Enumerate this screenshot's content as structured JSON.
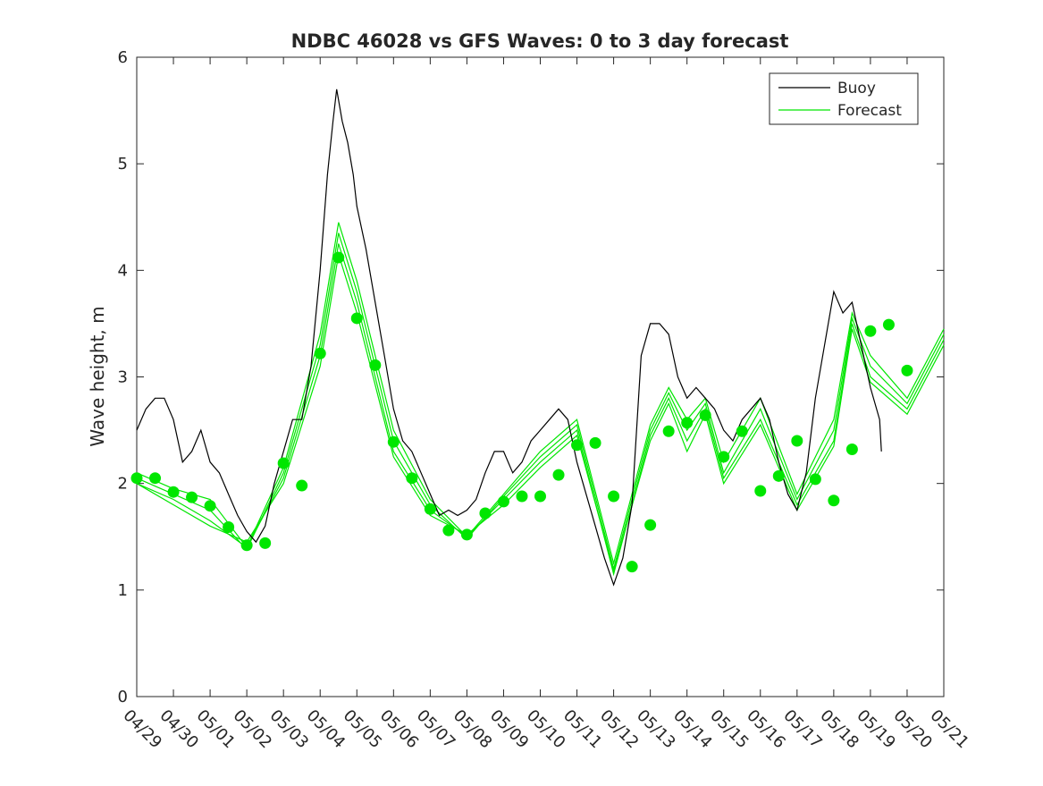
{
  "chart_data": {
    "type": "line",
    "title": "NDBC 46028 vs GFS Waves: 0 to 3 day forecast",
    "xlabel": "",
    "ylabel": "Wave height, m",
    "x_unit": "days since 04/29",
    "xlim": [
      0,
      22
    ],
    "ylim": [
      0,
      6
    ],
    "x_tick_values": [
      0,
      1,
      2,
      3,
      4,
      5,
      6,
      7,
      8,
      9,
      10,
      11,
      12,
      13,
      14,
      15,
      16,
      17,
      18,
      19,
      20,
      21,
      22
    ],
    "x_tick_labels": [
      "04/29",
      "04/30",
      "05/01",
      "05/02",
      "05/03",
      "05/04",
      "05/05",
      "05/06",
      "05/07",
      "05/08",
      "05/09",
      "05/10",
      "05/11",
      "05/12",
      "05/13",
      "05/14",
      "05/15",
      "05/16",
      "05/17",
      "05/18",
      "05/19",
      "05/20",
      "05/21"
    ],
    "y_tick_values": [
      0,
      1,
      2,
      3,
      4,
      5,
      6
    ],
    "y_tick_labels": [
      "0",
      "1",
      "2",
      "3",
      "4",
      "5",
      "6"
    ],
    "grid": false,
    "legend": {
      "position": "top-right",
      "entries": [
        {
          "label": "Buoy",
          "color": "#000000"
        },
        {
          "label": "Forecast",
          "color": "#00e600"
        }
      ]
    },
    "series": [
      {
        "name": "Buoy",
        "color": "#000000",
        "points": [
          [
            0.0,
            2.5
          ],
          [
            0.25,
            2.7
          ],
          [
            0.5,
            2.8
          ],
          [
            0.75,
            2.8
          ],
          [
            1.0,
            2.6
          ],
          [
            1.25,
            2.2
          ],
          [
            1.5,
            2.3
          ],
          [
            1.75,
            2.5
          ],
          [
            2.0,
            2.2
          ],
          [
            2.25,
            2.1
          ],
          [
            2.5,
            1.9
          ],
          [
            2.75,
            1.7
          ],
          [
            3.0,
            1.55
          ],
          [
            3.25,
            1.45
          ],
          [
            3.5,
            1.6
          ],
          [
            3.75,
            2.0
          ],
          [
            4.0,
            2.3
          ],
          [
            4.25,
            2.6
          ],
          [
            4.5,
            2.6
          ],
          [
            4.75,
            3.1
          ],
          [
            5.0,
            4.0
          ],
          [
            5.2,
            4.9
          ],
          [
            5.35,
            5.4
          ],
          [
            5.45,
            5.7
          ],
          [
            5.6,
            5.4
          ],
          [
            5.75,
            5.2
          ],
          [
            5.9,
            4.9
          ],
          [
            6.0,
            4.6
          ],
          [
            6.25,
            4.2
          ],
          [
            6.5,
            3.7
          ],
          [
            6.75,
            3.2
          ],
          [
            7.0,
            2.7
          ],
          [
            7.25,
            2.4
          ],
          [
            7.5,
            2.3
          ],
          [
            7.75,
            2.1
          ],
          [
            8.0,
            1.9
          ],
          [
            8.25,
            1.7
          ],
          [
            8.5,
            1.75
          ],
          [
            8.75,
            1.7
          ],
          [
            9.0,
            1.75
          ],
          [
            9.25,
            1.85
          ],
          [
            9.5,
            2.1
          ],
          [
            9.75,
            2.3
          ],
          [
            10.0,
            2.3
          ],
          [
            10.25,
            2.1
          ],
          [
            10.5,
            2.2
          ],
          [
            10.75,
            2.4
          ],
          [
            11.0,
            2.5
          ],
          [
            11.25,
            2.6
          ],
          [
            11.5,
            2.7
          ],
          [
            11.75,
            2.6
          ],
          [
            12.0,
            2.2
          ],
          [
            12.25,
            1.9
          ],
          [
            12.5,
            1.6
          ],
          [
            12.75,
            1.3
          ],
          [
            13.0,
            1.05
          ],
          [
            13.25,
            1.3
          ],
          [
            13.5,
            1.8
          ],
          [
            13.75,
            3.2
          ],
          [
            14.0,
            3.5
          ],
          [
            14.25,
            3.5
          ],
          [
            14.5,
            3.4
          ],
          [
            14.75,
            3.0
          ],
          [
            15.0,
            2.8
          ],
          [
            15.25,
            2.9
          ],
          [
            15.5,
            2.8
          ],
          [
            15.75,
            2.7
          ],
          [
            16.0,
            2.5
          ],
          [
            16.25,
            2.4
          ],
          [
            16.5,
            2.6
          ],
          [
            16.75,
            2.7
          ],
          [
            17.0,
            2.8
          ],
          [
            17.25,
            2.6
          ],
          [
            17.5,
            2.2
          ],
          [
            17.75,
            1.9
          ],
          [
            18.0,
            1.75
          ],
          [
            18.25,
            2.1
          ],
          [
            18.5,
            2.8
          ],
          [
            18.75,
            3.3
          ],
          [
            19.0,
            3.8
          ],
          [
            19.25,
            3.6
          ],
          [
            19.5,
            3.7
          ],
          [
            19.75,
            3.3
          ],
          [
            20.0,
            2.9
          ],
          [
            20.25,
            2.6
          ],
          [
            20.3,
            2.3
          ]
        ]
      },
      {
        "name": "Forecast",
        "color": "#00e600",
        "points": [
          [
            0.0,
            2.05
          ],
          [
            0.5,
            2.05
          ],
          [
            1.0,
            1.92
          ],
          [
            1.5,
            1.87
          ],
          [
            2.0,
            1.79
          ],
          [
            2.5,
            1.59
          ],
          [
            3.0,
            1.42
          ],
          [
            3.5,
            1.44
          ],
          [
            4.0,
            2.19
          ],
          [
            4.5,
            1.98
          ],
          [
            5.0,
            3.22
          ],
          [
            5.5,
            4.12
          ],
          [
            6.0,
            3.55
          ],
          [
            6.5,
            3.11
          ],
          [
            7.0,
            2.39
          ],
          [
            7.5,
            2.05
          ],
          [
            8.0,
            1.76
          ],
          [
            8.5,
            1.56
          ],
          [
            9.0,
            1.52
          ],
          [
            9.5,
            1.72
          ],
          [
            10.0,
            1.83
          ],
          [
            10.5,
            1.88
          ],
          [
            11.0,
            1.88
          ],
          [
            11.5,
            2.08
          ],
          [
            12.0,
            2.36
          ],
          [
            12.5,
            2.38
          ],
          [
            13.0,
            1.88
          ],
          [
            13.5,
            1.22
          ],
          [
            14.0,
            1.61
          ],
          [
            14.5,
            2.49
          ],
          [
            15.0,
            2.57
          ],
          [
            15.5,
            2.64
          ],
          [
            16.0,
            2.25
          ],
          [
            16.5,
            2.49
          ],
          [
            17.0,
            1.93
          ],
          [
            17.5,
            2.07
          ],
          [
            18.0,
            2.4
          ],
          [
            18.5,
            2.04
          ],
          [
            19.0,
            1.84
          ],
          [
            19.5,
            2.32
          ],
          [
            20.0,
            3.43
          ],
          [
            20.5,
            3.49
          ],
          [
            21.0,
            3.06
          ]
        ]
      }
    ],
    "forecast_runs": [
      {
        "name": "Forecast run 1",
        "points": [
          [
            0,
            2.1
          ],
          [
            1,
            1.95
          ],
          [
            2,
            1.85
          ],
          [
            3,
            1.4
          ],
          [
            4,
            2.15
          ],
          [
            5,
            3.4
          ],
          [
            5.5,
            4.45
          ],
          [
            6,
            3.9
          ],
          [
            7,
            2.5
          ],
          [
            8,
            1.85
          ],
          [
            9,
            1.5
          ],
          [
            10,
            1.9
          ],
          [
            11,
            2.3
          ],
          [
            12,
            2.6
          ],
          [
            13,
            1.25
          ],
          [
            14,
            2.55
          ],
          [
            14.5,
            2.9
          ],
          [
            15,
            2.6
          ],
          [
            15.5,
            2.8
          ],
          [
            16,
            2.2
          ],
          [
            17,
            2.8
          ],
          [
            18,
            1.9
          ],
          [
            19,
            2.6
          ],
          [
            19.5,
            3.6
          ],
          [
            20,
            3.2
          ],
          [
            21,
            2.8
          ],
          [
            22,
            3.45
          ]
        ]
      },
      {
        "name": "Forecast run 2",
        "points": [
          [
            0,
            2.05
          ],
          [
            1,
            1.9
          ],
          [
            2,
            1.75
          ],
          [
            3,
            1.38
          ],
          [
            4,
            2.1
          ],
          [
            5,
            3.3
          ],
          [
            5.5,
            4.35
          ],
          [
            6,
            3.8
          ],
          [
            7,
            2.4
          ],
          [
            8,
            1.8
          ],
          [
            9,
            1.48
          ],
          [
            10,
            1.88
          ],
          [
            11,
            2.25
          ],
          [
            12,
            2.55
          ],
          [
            13,
            1.2
          ],
          [
            14,
            2.5
          ],
          [
            14.5,
            2.85
          ],
          [
            15,
            2.5
          ],
          [
            15.5,
            2.75
          ],
          [
            16,
            2.1
          ],
          [
            17,
            2.7
          ],
          [
            18,
            1.85
          ],
          [
            19,
            2.5
          ],
          [
            19.5,
            3.55
          ],
          [
            20,
            3.1
          ],
          [
            21,
            2.75
          ],
          [
            22,
            3.4
          ]
        ]
      },
      {
        "name": "Forecast run 3",
        "points": [
          [
            0,
            2.0
          ],
          [
            1,
            1.85
          ],
          [
            2,
            1.65
          ],
          [
            3,
            1.4
          ],
          [
            4,
            2.05
          ],
          [
            5,
            3.2
          ],
          [
            5.5,
            4.25
          ],
          [
            6,
            3.7
          ],
          [
            7,
            2.3
          ],
          [
            8,
            1.75
          ],
          [
            9,
            1.5
          ],
          [
            10,
            1.85
          ],
          [
            11,
            2.2
          ],
          [
            12,
            2.5
          ],
          [
            13,
            1.15
          ],
          [
            14,
            2.45
          ],
          [
            14.5,
            2.8
          ],
          [
            15,
            2.4
          ],
          [
            15.5,
            2.7
          ],
          [
            16,
            2.05
          ],
          [
            17,
            2.6
          ],
          [
            18,
            1.8
          ],
          [
            19,
            2.4
          ],
          [
            19.5,
            3.5
          ],
          [
            20,
            3.0
          ],
          [
            21,
            2.7
          ],
          [
            22,
            3.35
          ]
        ]
      },
      {
        "name": "Forecast run 4",
        "points": [
          [
            0,
            2.0
          ],
          [
            1,
            1.8
          ],
          [
            2,
            1.6
          ],
          [
            3,
            1.45
          ],
          [
            4,
            2.0
          ],
          [
            5,
            3.1
          ],
          [
            5.5,
            4.15
          ],
          [
            6,
            3.6
          ],
          [
            7,
            2.25
          ],
          [
            8,
            1.7
          ],
          [
            9,
            1.52
          ],
          [
            10,
            1.8
          ],
          [
            11,
            2.15
          ],
          [
            12,
            2.45
          ],
          [
            13,
            1.18
          ],
          [
            14,
            2.4
          ],
          [
            14.5,
            2.75
          ],
          [
            15,
            2.3
          ],
          [
            15.5,
            2.65
          ],
          [
            16,
            2.0
          ],
          [
            17,
            2.55
          ],
          [
            18,
            1.75
          ],
          [
            19,
            2.35
          ],
          [
            19.5,
            3.45
          ],
          [
            20,
            2.95
          ],
          [
            21,
            2.65
          ],
          [
            22,
            3.3
          ]
        ]
      }
    ]
  }
}
